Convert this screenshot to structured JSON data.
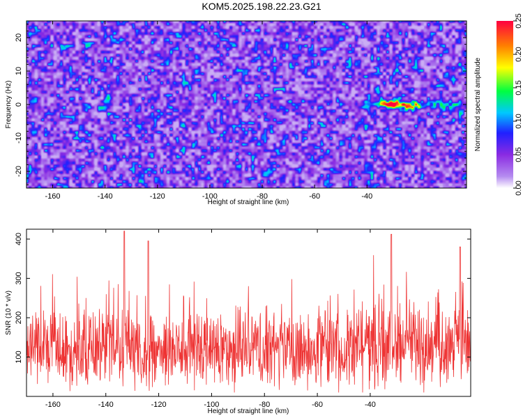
{
  "chart_data": [
    {
      "type": "heatmap",
      "title": "KOM5.2025.198.22.23.G21",
      "xlabel": "Height of straight line (km)",
      "ylabel": "Frequency (Hz)",
      "xlim": [
        -170,
        -2
      ],
      "ylim": [
        -25,
        25
      ],
      "xticks": [
        "-160",
        "-140",
        "-120",
        "-100",
        "-80",
        "-60",
        "-40"
      ],
      "yticks": [
        "20",
        "10",
        "0",
        "-10",
        "-20"
      ],
      "colorbar": {
        "label": "Normalized spectral amplitude",
        "range": [
          0,
          0.25
        ],
        "ticks": [
          "0.25",
          "0.20",
          "0.15",
          "0.10",
          "0.05",
          "0.00"
        ],
        "colors": [
          "#ffffff",
          "#8a2be2",
          "#2020ff",
          "#00c8ff",
          "#00ff40",
          "#ffff00",
          "#ff8000",
          "#ff0040"
        ]
      },
      "signal": {
        "frequency_hz": 0,
        "x_range_km": [
          -60,
          -2
        ],
        "peak_x_km": -30,
        "peak_amplitude": 0.25
      },
      "background_amplitude": 0.05
    },
    {
      "type": "line",
      "xlabel": "Height of straight line (km)",
      "ylabel": "SNR (10 * v/v)",
      "xlim": [
        -170,
        -2
      ],
      "ylim": [
        0,
        425
      ],
      "xticks": [
        "-160",
        "-140",
        "-120",
        "-100",
        "-80",
        "-60",
        "-40"
      ],
      "yticks": [
        "400",
        "300",
        "200",
        "100"
      ],
      "series": [
        {
          "color": "#ee3333",
          "mean": 120,
          "range": [
            10,
            420
          ],
          "peaks": [
            {
              "x": -133,
              "y": 420
            },
            {
              "x": -124,
              "y": 395
            },
            {
              "x": -32,
              "y": 412
            },
            {
              "x": -6,
              "y": 380
            }
          ]
        }
      ]
    }
  ]
}
